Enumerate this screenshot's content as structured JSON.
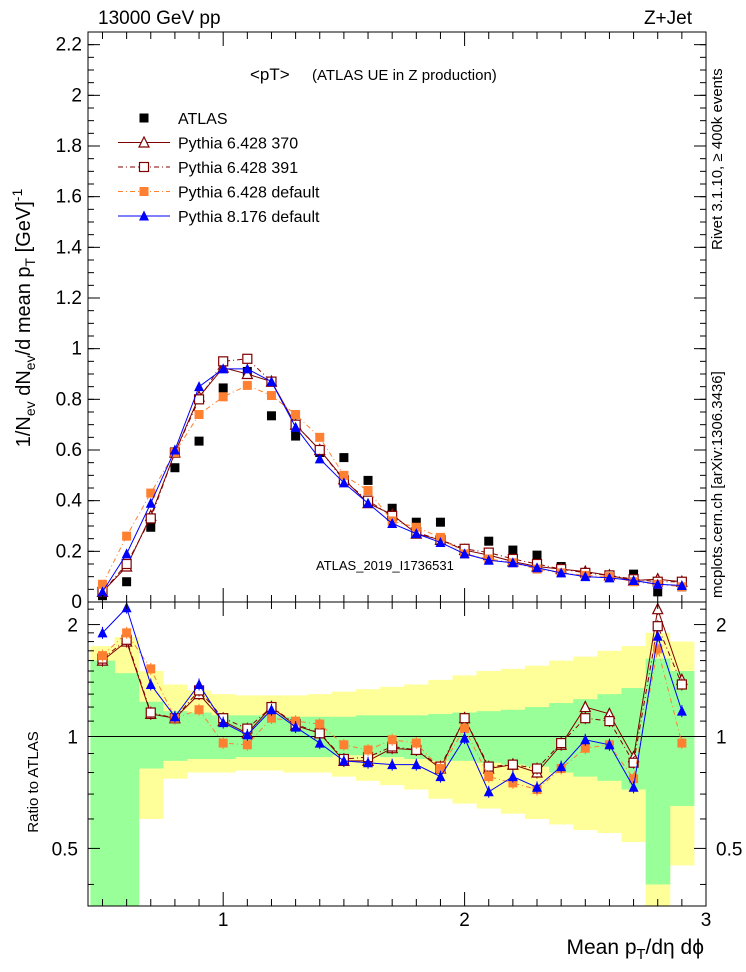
{
  "header": {
    "energy_label": "13000 GeV pp",
    "process_label": "Z+Jet"
  },
  "side_labels": {
    "events": "Rivet 3.1.10, ≥ 400k events",
    "site": "mcplots.cern.ch [arXiv:1306.3436]"
  },
  "chart_data": {
    "type": "scatter",
    "title": "<pT>",
    "subtitle": "(ATLAS UE in Z production)",
    "watermark": "ATLAS_2019_I1736531",
    "ylabel": {
      "main": "1/N",
      "s1": "ev",
      "mid": " dN",
      "s2": "ev",
      "post": "/d mean p",
      "s3": "T",
      "unit": " [GeV]",
      "sup": "-1"
    },
    "xlabel": {
      "main": "Mean p",
      "s1": "T",
      "post": "/dη dϕ"
    },
    "ratio_ylabel": "Ratio to ATLAS",
    "xlim": [
      0.44,
      3.0
    ],
    "ylim": [
      0,
      2.25
    ],
    "ratio_ylim": [
      0.35,
      2.3
    ],
    "x_ticks": [
      "1",
      "2",
      "3"
    ],
    "y_ticks": [
      "0",
      "0.2",
      "0.4",
      "0.6",
      "0.8",
      "1",
      "1.2",
      "1.4",
      "1.6",
      "1.8",
      "2",
      "2.2"
    ],
    "ratio_ticks": [
      "0.5",
      "1",
      "2"
    ],
    "x": [
      0.5,
      0.6,
      0.7,
      0.8,
      0.9,
      1.0,
      1.1,
      1.2,
      1.3,
      1.4,
      1.5,
      1.6,
      1.7,
      1.8,
      1.9,
      2.0,
      2.1,
      2.2,
      2.3,
      2.4,
      2.5,
      2.6,
      2.7,
      2.8,
      2.9
    ],
    "series": [
      {
        "name": "ATLAS",
        "marker": "square-filled",
        "color": "#000000",
        "values": [
          0.025,
          0.08,
          0.295,
          0.53,
          0.635,
          0.845,
          0.91,
          0.735,
          0.655,
          0.59,
          0.57,
          0.48,
          0.37,
          0.315,
          0.315,
          0.19,
          0.24,
          0.205,
          0.185,
          0.14,
          0.115,
          0.1,
          0.11,
          0.04,
          0.06
        ]
      },
      {
        "name": "Pythia 6.428 370",
        "marker": "triangle-open",
        "color": "#800000",
        "values": [
          0.04,
          0.14,
          0.34,
          0.59,
          0.81,
          0.925,
          0.9,
          0.87,
          0.7,
          0.6,
          0.485,
          0.39,
          0.345,
          0.27,
          0.245,
          0.205,
          0.185,
          0.16,
          0.14,
          0.13,
          0.12,
          0.105,
          0.085,
          0.09,
          0.08
        ]
      },
      {
        "name": "Pythia 6.428 391",
        "marker": "square-open",
        "color": "#800000",
        "values": [
          0.04,
          0.15,
          0.33,
          0.59,
          0.8,
          0.95,
          0.96,
          0.87,
          0.7,
          0.6,
          0.48,
          0.4,
          0.34,
          0.275,
          0.245,
          0.21,
          0.195,
          0.17,
          0.15,
          0.13,
          0.115,
          0.105,
          0.09,
          0.08,
          0.08
        ]
      },
      {
        "name": "Pythia 6.428 default",
        "marker": "square-filled",
        "color": "#ff8030",
        "values": [
          0.07,
          0.26,
          0.43,
          0.59,
          0.74,
          0.81,
          0.855,
          0.815,
          0.74,
          0.65,
          0.5,
          0.44,
          0.32,
          0.295,
          0.255,
          0.19,
          0.17,
          0.155,
          0.13,
          0.115,
          0.105,
          0.1,
          0.08,
          0.07,
          0.06
        ]
      },
      {
        "name": "Pythia 8.176 default",
        "marker": "triangle-filled",
        "color": "#0000ff",
        "values": [
          0.04,
          0.19,
          0.39,
          0.6,
          0.85,
          0.92,
          0.92,
          0.87,
          0.69,
          0.565,
          0.47,
          0.39,
          0.31,
          0.27,
          0.235,
          0.19,
          0.165,
          0.155,
          0.135,
          0.115,
          0.1,
          0.095,
          0.085,
          0.07,
          0.065
        ]
      }
    ],
    "ratios": [
      {
        "name": "Pythia 6.428 370",
        "values": [
          1.6,
          1.8,
          1.15,
          1.12,
          1.3,
          1.1,
          1.02,
          1.2,
          1.07,
          1.02,
          0.86,
          0.86,
          0.93,
          0.92,
          0.82,
          1.12,
          0.82,
          0.84,
          0.8,
          0.95,
          1.2,
          1.15,
          0.88,
          2.2,
          1.42
        ]
      },
      {
        "name": "Pythia 6.428 391",
        "values": [
          1.62,
          1.82,
          1.16,
          1.12,
          1.33,
          1.12,
          1.05,
          1.2,
          1.08,
          1.02,
          0.87,
          0.88,
          0.94,
          0.92,
          0.83,
          1.12,
          0.83,
          0.84,
          0.82,
          0.96,
          1.12,
          1.1,
          0.85,
          1.98,
          1.38
        ]
      },
      {
        "name": "Pythia 6.428 default",
        "values": [
          1.65,
          1.9,
          1.52,
          1.12,
          1.18,
          0.96,
          0.95,
          1.12,
          1.1,
          1.08,
          0.95,
          0.92,
          0.98,
          0.96,
          0.82,
          1.05,
          0.78,
          0.75,
          0.72,
          0.82,
          0.93,
          0.95,
          0.77,
          1.72,
          0.96
        ]
      },
      {
        "name": "Pythia 8.176 default",
        "values": [
          1.9,
          2.22,
          1.38,
          1.13,
          1.38,
          1.09,
          1.01,
          1.18,
          1.06,
          0.96,
          0.86,
          0.85,
          0.84,
          0.84,
          0.78,
          0.99,
          0.71,
          0.78,
          0.73,
          0.83,
          0.98,
          0.95,
          0.73,
          1.86,
          1.17
        ]
      }
    ],
    "bands": {
      "green": {
        "lo": [
          0.35,
          0.35,
          0.82,
          0.86,
          0.87,
          0.87,
          0.88,
          0.88,
          0.88,
          0.88,
          0.89,
          0.89,
          0.88,
          0.87,
          0.86,
          0.86,
          0.85,
          0.84,
          0.83,
          0.8,
          0.78,
          0.76,
          0.72,
          0.4,
          0.65
        ],
        "hi": [
          1.6,
          1.48,
          1.24,
          1.17,
          1.16,
          1.14,
          1.14,
          1.14,
          1.13,
          1.13,
          1.13,
          1.14,
          1.14,
          1.14,
          1.15,
          1.16,
          1.17,
          1.18,
          1.2,
          1.23,
          1.26,
          1.3,
          1.35,
          1.62,
          1.5
        ]
      },
      "yellow": {
        "lo": [
          0.35,
          0.35,
          0.6,
          0.77,
          0.8,
          0.8,
          0.81,
          0.81,
          0.8,
          0.8,
          0.78,
          0.76,
          0.74,
          0.72,
          0.68,
          0.66,
          0.64,
          0.62,
          0.6,
          0.58,
          0.56,
          0.55,
          0.52,
          0.35,
          0.45
        ],
        "hi": [
          1.75,
          1.85,
          1.5,
          1.38,
          1.33,
          1.3,
          1.29,
          1.29,
          1.29,
          1.3,
          1.32,
          1.34,
          1.36,
          1.38,
          1.42,
          1.46,
          1.5,
          1.52,
          1.55,
          1.6,
          1.64,
          1.7,
          1.75,
          1.9,
          1.8
        ]
      }
    }
  }
}
